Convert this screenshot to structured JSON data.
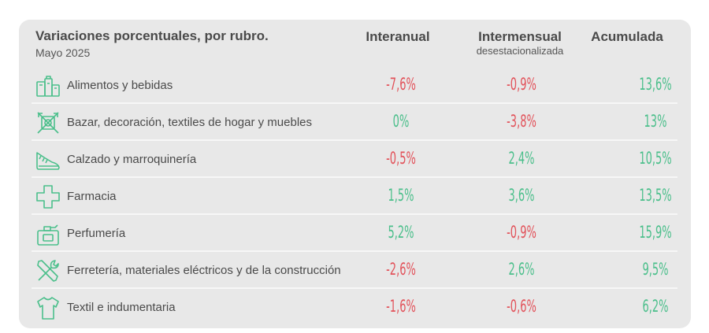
{
  "header": {
    "title": "Variaciones porcentuales, por rubro.",
    "subtitle": "Mayo 2025",
    "col_interanual": "Interanual",
    "col_intermensual": "Intermensual",
    "col_intermensual_sub": "desestacionalizada",
    "col_acumulada": "Acumulada"
  },
  "colors": {
    "negative": "#e2525a",
    "positive": "#4bbf8b",
    "icon": "#4bbf8b"
  },
  "rows": [
    {
      "icon": "grocery-icon",
      "label": "Alimentos y bebidas",
      "interanual": "-7,6%",
      "intermensual": "-0,9%",
      "acumulada": "13,6%"
    },
    {
      "icon": "home-decor-icon",
      "label": "Bazar, decoración, textiles de hogar y muebles",
      "interanual": "0%",
      "intermensual": "-3,8%",
      "acumulada": "13%"
    },
    {
      "icon": "shoe-icon",
      "label": "Calzado y marroquinería",
      "interanual": "-0,5%",
      "intermensual": "2,4%",
      "acumulada": "10,5%"
    },
    {
      "icon": "pharmacy-cross-icon",
      "label": "Farmacia",
      "interanual": "1,5%",
      "intermensual": "3,6%",
      "acumulada": "13,5%"
    },
    {
      "icon": "perfume-icon",
      "label": "Perfumería",
      "interanual": "5,2%",
      "intermensual": "-0,9%",
      "acumulada": "15,9%"
    },
    {
      "icon": "tools-icon",
      "label": "Ferretería, materiales eléctricos y de la construcción",
      "interanual": "-2,6%",
      "intermensual": "2,6%",
      "acumulada": "9,5%"
    },
    {
      "icon": "shirt-icon",
      "label": "Textil e indumentaria",
      "interanual": "-1,6%",
      "intermensual": "-0,6%",
      "acumulada": "6,2%"
    }
  ]
}
